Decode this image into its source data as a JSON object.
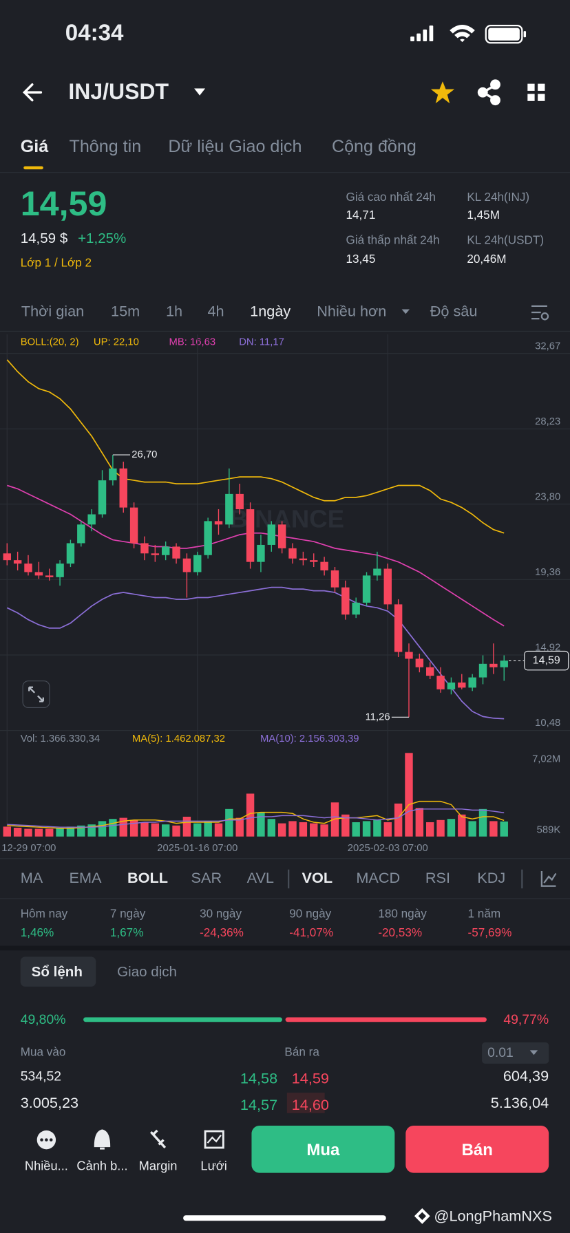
{
  "status_bar": {
    "time": "04:34"
  },
  "header": {
    "pair": "INJ/USDT"
  },
  "tabs": [
    "Giá",
    "Thông tin",
    "Dữ liệu Giao dịch",
    "Cộng đồng"
  ],
  "summary": {
    "price": "14,59",
    "price_usd": "14,59 $",
    "change": "+1,25%",
    "layer": "Lớp 1 / Lớp 2",
    "stats": [
      {
        "label": "Giá cao nhất 24h",
        "value": "14,71"
      },
      {
        "label": "KL 24h(INJ)",
        "value": "1,45M"
      },
      {
        "label": "Giá thấp nhất 24h",
        "value": "13,45"
      },
      {
        "label": "KL 24h(USDT)",
        "value": "20,46M"
      }
    ]
  },
  "intervals": [
    "Thời gian",
    "15m",
    "1h",
    "4h",
    "1ngày",
    "Nhiều hơn",
    "Độ sâu"
  ],
  "chart_data": [
    {
      "type": "candlestick",
      "legend_title": "BOLL:(20, 2)",
      "watermark": "BINANCE",
      "open": [
        20.9,
        20.5,
        20.3,
        19.8,
        19.6,
        19.5,
        20.3,
        21.5,
        22.6,
        23.2,
        25.2,
        25.9,
        23.6,
        21.5,
        20.9,
        20.8,
        21.3,
        20.6,
        19.8,
        20.8,
        22.8,
        22.6,
        24.4,
        23.5,
        20.4,
        21.4,
        22.6,
        21.2,
        20.6,
        20.5,
        20.4,
        19.9,
        18.9,
        17.3,
        18.0,
        19.6,
        20.0,
        17.9,
        15.1,
        14.7,
        14.2,
        13.7,
        12.9,
        13.3,
        13.0,
        13.6,
        14.4,
        14.2
      ],
      "high": [
        21.5,
        21.0,
        20.8,
        20.4,
        20.0,
        20.5,
        21.7,
        22.8,
        23.5,
        25.8,
        26.7,
        26.3,
        23.9,
        21.9,
        21.4,
        21.6,
        21.5,
        20.9,
        21.0,
        23.0,
        23.5,
        25.9,
        25.0,
        23.9,
        22.0,
        22.8,
        22.8,
        21.5,
        21.0,
        20.9,
        20.7,
        20.1,
        19.3,
        18.3,
        19.8,
        21.0,
        20.3,
        18.2,
        15.6,
        15.0,
        14.5,
        14.2,
        13.6,
        13.8,
        13.8,
        14.9,
        15.6,
        14.9
      ],
      "low": [
        20.2,
        19.9,
        19.6,
        19.4,
        19.3,
        19.0,
        20.1,
        21.3,
        22.2,
        23.0,
        24.9,
        23.3,
        21.2,
        20.5,
        20.4,
        20.5,
        20.3,
        18.3,
        19.6,
        20.6,
        22.0,
        22.4,
        23.2,
        20.0,
        19.8,
        21.0,
        20.9,
        20.3,
        20.2,
        20.1,
        19.6,
        18.6,
        17.0,
        17.1,
        17.8,
        19.3,
        17.6,
        14.8,
        11.26,
        13.9,
        13.5,
        12.7,
        12.6,
        12.9,
        12.8,
        13.2,
        13.8,
        13.4
      ],
      "close": [
        20.5,
        20.3,
        19.8,
        19.6,
        19.5,
        20.3,
        21.5,
        22.6,
        23.2,
        25.2,
        25.9,
        23.6,
        21.5,
        20.9,
        20.8,
        21.3,
        20.6,
        19.8,
        20.8,
        22.8,
        22.6,
        24.4,
        23.5,
        20.4,
        21.4,
        22.6,
        21.2,
        20.6,
        20.5,
        20.4,
        19.9,
        18.9,
        17.3,
        18.0,
        19.6,
        20.0,
        17.9,
        15.1,
        14.7,
        14.2,
        13.7,
        12.9,
        13.3,
        13.0,
        13.6,
        14.4,
        14.2,
        14.59
      ],
      "high_label": "26,70",
      "low_label": "11,26",
      "last_label": "14,59",
      "up_color": "#2ebd85",
      "down_color": "#f6465d",
      "series": [
        {
          "name": "UP: 22,10",
          "color": "#f0b90b",
          "values": [
            32.3,
            31.6,
            31.0,
            30.6,
            30.4,
            30.0,
            29.4,
            28.6,
            27.8,
            26.8,
            25.8,
            25.3,
            25.2,
            25.1,
            25.1,
            25.1,
            25.0,
            25.0,
            25.0,
            25.1,
            25.2,
            25.3,
            25.4,
            25.4,
            25.4,
            25.3,
            25.1,
            24.8,
            24.5,
            24.2,
            24.0,
            24.0,
            24.2,
            24.2,
            24.3,
            24.5,
            24.7,
            24.9,
            24.9,
            24.9,
            24.6,
            24.1,
            23.9,
            23.6,
            23.2,
            22.7,
            22.3,
            22.1
          ]
        },
        {
          "name": "MB: 16,63",
          "color": "#e040b0",
          "values": [
            24.9,
            24.7,
            24.4,
            24.1,
            23.8,
            23.5,
            23.2,
            22.8,
            22.4,
            22.0,
            21.7,
            21.6,
            21.5,
            21.4,
            21.3,
            21.3,
            21.2,
            21.2,
            21.3,
            21.4,
            21.6,
            21.8,
            22.0,
            22.1,
            22.1,
            22.0,
            21.9,
            21.8,
            21.7,
            21.6,
            21.4,
            21.2,
            21.1,
            21.0,
            20.9,
            20.8,
            20.6,
            20.4,
            20.1,
            19.8,
            19.4,
            19.0,
            18.6,
            18.2,
            17.8,
            17.4,
            17.0,
            16.63
          ]
        },
        {
          "name": "DN: 11,17",
          "color": "#8c6fd8",
          "values": [
            17.7,
            17.4,
            17.0,
            16.7,
            16.5,
            16.5,
            16.8,
            17.3,
            17.8,
            18.2,
            18.5,
            18.6,
            18.5,
            18.4,
            18.3,
            18.3,
            18.2,
            18.2,
            18.3,
            18.3,
            18.4,
            18.5,
            18.6,
            18.7,
            18.8,
            18.9,
            18.9,
            18.8,
            18.8,
            18.7,
            18.7,
            18.6,
            18.3,
            18.0,
            17.8,
            17.7,
            17.5,
            17.0,
            16.2,
            15.4,
            14.6,
            13.8,
            13.0,
            12.2,
            11.6,
            11.3,
            11.2,
            11.17
          ]
        }
      ],
      "ylim": [
        10.48,
        33.79
      ],
      "yticks": [
        {
          "value": 32.67,
          "label": "32,67"
        },
        {
          "value": 28.23,
          "label": "28,23"
        },
        {
          "value": 23.8,
          "label": "23,80"
        },
        {
          "value": 19.36,
          "label": "19,36"
        },
        {
          "value": 14.92,
          "label": "14,92"
        },
        {
          "value": 10.48,
          "label": "10,48"
        }
      ],
      "grid": true
    },
    {
      "type": "bar",
      "categories": [
        "12-29 07:00",
        null,
        null,
        null,
        null,
        null,
        null,
        null,
        null,
        null,
        null,
        null,
        null,
        null,
        null,
        null,
        null,
        null,
        "2025-01-16 07:00",
        null,
        null,
        null,
        null,
        null,
        null,
        null,
        null,
        null,
        null,
        null,
        null,
        null,
        null,
        null,
        null,
        null,
        "2025-02-03 07:00",
        null,
        null,
        null,
        null,
        null,
        null,
        null,
        null,
        null,
        null,
        null
      ],
      "series": [
        {
          "name": "Vol: 1.366.330,34",
          "color": "#848e9c",
          "values": [
            900000,
            800000,
            700000,
            700000,
            700000,
            800000,
            900000,
            1000000,
            1100000,
            1400000,
            1600000,
            1700000,
            1500000,
            1300000,
            1200000,
            1100000,
            1000000,
            1800000,
            1200000,
            1400000,
            1200000,
            2500000,
            1700000,
            3900000,
            2200000,
            1600000,
            1200000,
            1400000,
            1300000,
            1200000,
            1100000,
            3100000,
            2000000,
            1300000,
            1400000,
            1500000,
            1300000,
            3000000,
            7600000,
            2600000,
            1300000,
            1500000,
            1600000,
            2000000,
            1400000,
            2500000,
            1400000,
            1366330.34
          ]
        },
        {
          "name": "MA(5): 1.462.087,32",
          "color": "#f0b90b",
          "values": [
            1000000,
            950000,
            900000,
            850000,
            800000,
            750000,
            750000,
            800000,
            900000,
            1000000,
            1200000,
            1400000,
            1500000,
            1500000,
            1500000,
            1400000,
            1200000,
            1300000,
            1300000,
            1300000,
            1300000,
            1600000,
            1600000,
            2100000,
            2200000,
            2200000,
            2200000,
            2100000,
            1600000,
            1300000,
            1200000,
            1600000,
            1700000,
            1700000,
            1800000,
            1900000,
            1500000,
            1700000,
            2900000,
            3200000,
            3200000,
            3200000,
            2900000,
            1800000,
            1600000,
            1800000,
            1800000,
            1462087.32
          ]
        },
        {
          "name": "MA(10): 2.156.303,39",
          "color": "#8c6fd8",
          "values": [
            1100000,
            1050000,
            1000000,
            950000,
            900000,
            850000,
            850000,
            850000,
            850000,
            900000,
            1000000,
            1100000,
            1200000,
            1300000,
            1300000,
            1400000,
            1400000,
            1400000,
            1400000,
            1400000,
            1400000,
            1500000,
            1500000,
            1700000,
            1800000,
            1800000,
            1900000,
            1900000,
            1900000,
            1800000,
            1700000,
            1800000,
            1700000,
            1700000,
            1600000,
            1500000,
            1600000,
            1700000,
            2300000,
            2500000,
            2500000,
            2500000,
            2500000,
            2500000,
            2400000,
            2400000,
            2300000,
            2156303.39
          ]
        }
      ],
      "ylim": [
        0,
        8860000
      ],
      "yticks": [
        {
          "value": 7020000,
          "label": "7,02M"
        },
        {
          "value": 589000,
          "label": "589K"
        }
      ],
      "grid": false
    }
  ],
  "indicators": [
    "MA",
    "EMA",
    "BOLL",
    "SAR",
    "AVL",
    "VOL",
    "MACD",
    "RSI",
    "KDJ"
  ],
  "performance": [
    {
      "label": "Hôm nay",
      "value": "1,46%"
    },
    {
      "label": "7 ngày",
      "value": "1,67%"
    },
    {
      "label": "30 ngày",
      "value": "-24,36%"
    },
    {
      "label": "90 ngày",
      "value": "-41,07%"
    },
    {
      "label": "180 ngày",
      "value": "-20,53%"
    },
    {
      "label": "1 năm",
      "value": "-57,69%"
    }
  ],
  "orderbook": {
    "tabs": [
      "Sổ lệnh",
      "Giao dịch"
    ],
    "buy_pct": "49,80%",
    "sell_pct": "49,77%",
    "buy_label": "Mua vào",
    "sell_label": "Bán ra",
    "precision": "0.01",
    "rows": [
      [
        "534,52",
        "14,58",
        "14,59",
        "604,39"
      ],
      [
        "3.005,23",
        "14,57",
        "14,60",
        "5.136,04"
      ]
    ]
  },
  "bottom": {
    "actions": [
      "Nhiều...",
      "Cảnh b...",
      "Margin",
      "Lưới"
    ],
    "buy": "Mua",
    "sell": "Bán"
  },
  "watermark": "@LongPhamNXS"
}
